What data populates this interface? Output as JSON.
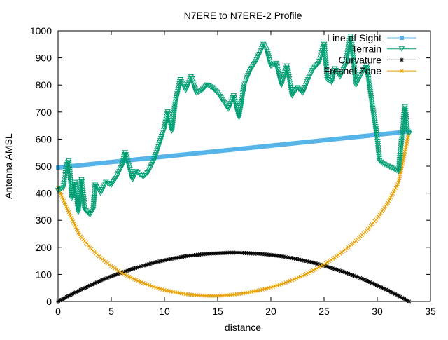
{
  "chart_data": {
    "type": "line",
    "title": "N7ERE to N7ERE-2 Profile",
    "xlabel": "distance",
    "ylabel": "Antenna AMSL",
    "xlim": [
      0,
      35
    ],
    "ylim": [
      0,
      1000
    ],
    "xticks": [
      "0",
      "5",
      "10",
      "15",
      "20",
      "25",
      "30",
      "35"
    ],
    "yticks": [
      "0",
      "100",
      "200",
      "300",
      "400",
      "500",
      "600",
      "700",
      "800",
      "900",
      "1000"
    ],
    "grid": false,
    "legend_position": "top-right",
    "series": [
      {
        "name": "Line of Sight",
        "color": "#56b4e9",
        "marker": "square",
        "x": [
          0,
          33
        ],
        "y": [
          495,
          628
        ]
      },
      {
        "name": "Terrain",
        "color": "#009e73",
        "marker": "triangle-down",
        "x": [
          0,
          0.5,
          0.8,
          1,
          1.3,
          1.6,
          1.9,
          2.2,
          2.5,
          3,
          3.3,
          3.5,
          4,
          4.5,
          5,
          5.5,
          6,
          6.3,
          6.6,
          7,
          7.3,
          8,
          8.5,
          9,
          9.5,
          10,
          10.3,
          10.7,
          11,
          11.5,
          12,
          12.5,
          13,
          13.5,
          14,
          14.5,
          15,
          15.5,
          16,
          16.5,
          17,
          17.5,
          18,
          18.5,
          19,
          19.3,
          19.6,
          20,
          20.5,
          21,
          21.5,
          22,
          22.5,
          23,
          23.5,
          24,
          24.5,
          25,
          25.3,
          25.7,
          26,
          26.5,
          27,
          27.5,
          28,
          28.5,
          29,
          29.5,
          30,
          30.2,
          30.5,
          31,
          32,
          32.3,
          32.6,
          32.8,
          33
        ],
        "y": [
          410,
          420,
          500,
          520,
          380,
          440,
          330,
          450,
          340,
          320,
          340,
          430,
          400,
          440,
          430,
          460,
          500,
          550,
          510,
          450,
          480,
          460,
          480,
          520,
          580,
          640,
          700,
          630,
          730,
          820,
          780,
          830,
          770,
          780,
          800,
          790,
          770,
          740,
          710,
          760,
          680,
          800,
          850,
          880,
          920,
          950,
          930,
          870,
          880,
          800,
          870,
          760,
          790,
          770,
          820,
          860,
          880,
          950,
          820,
          810,
          860,
          830,
          870,
          980,
          800,
          840,
          870,
          730,
          600,
          520,
          510,
          500,
          480,
          600,
          720,
          630,
          620
        ]
      },
      {
        "name": "Curvature",
        "color": "#000000",
        "marker": "star",
        "x": [
          0,
          1,
          2,
          3,
          4,
          5,
          6,
          7,
          8,
          9,
          10,
          11,
          12,
          13,
          14,
          15,
          16,
          17,
          18,
          19,
          20,
          21,
          22,
          23,
          24,
          25,
          26,
          27,
          28,
          29,
          30,
          31,
          32,
          33
        ],
        "y": [
          0,
          21,
          41,
          59,
          77,
          93,
          107,
          120,
          132,
          143,
          152,
          160,
          167,
          172,
          176,
          178,
          180,
          180,
          178,
          176,
          172,
          167,
          160,
          152,
          143,
          132,
          120,
          107,
          93,
          77,
          59,
          41,
          21,
          0
        ]
      },
      {
        "name": "Fresnel Zone",
        "color": "#e69f00",
        "marker": "x",
        "x": [
          0,
          1,
          2,
          3,
          4,
          5,
          6,
          7,
          8,
          9,
          10,
          11,
          12,
          13,
          14,
          15,
          16,
          17,
          18,
          19,
          20,
          21,
          22,
          23,
          24,
          25,
          26,
          27,
          28,
          29,
          30,
          31,
          32,
          33
        ],
        "y": [
          420,
          330,
          247,
          199,
          161,
          131,
          105,
          85,
          68,
          54,
          42,
          34,
          27,
          23,
          21,
          21,
          23,
          28,
          34,
          42,
          52,
          64,
          79,
          95,
          115,
          137,
          162,
          191,
          224,
          262,
          308,
          364,
          440,
          628
        ]
      }
    ]
  }
}
